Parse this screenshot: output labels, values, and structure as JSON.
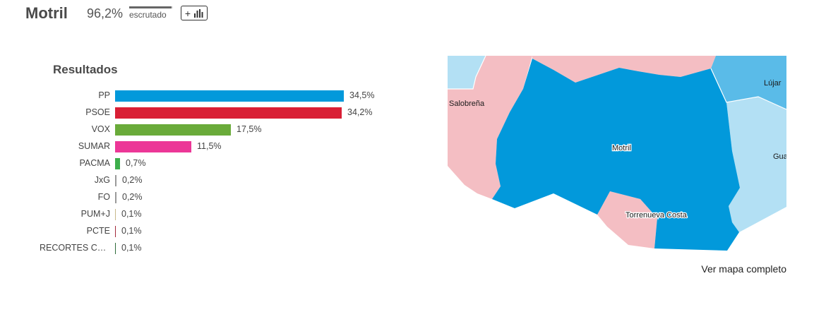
{
  "header": {
    "title": "Motril",
    "scrutiny_pct": "96,2%",
    "scrutiny_fraction": 0.962,
    "scrutiny_label": "escrutado",
    "plus_label": "+",
    "chart_icon": "bar-chart-icon"
  },
  "results": {
    "title": "Resultados",
    "rows": [
      {
        "label": "PP",
        "value": "34,5%",
        "pct": 34.5,
        "color": "#0299DB"
      },
      {
        "label": "PSOE",
        "value": "34,2%",
        "pct": 34.2,
        "color": "#D91F35"
      },
      {
        "label": "VOX",
        "value": "17,5%",
        "pct": 17.5,
        "color": "#6AAB3A"
      },
      {
        "label": "SUMAR",
        "value": "11,5%",
        "pct": 11.5,
        "color": "#EC3797"
      },
      {
        "label": "PACMA",
        "value": "0,7%",
        "pct": 0.7,
        "color": "#3DAE4B"
      },
      {
        "label": "JxG",
        "value": "0,2%",
        "pct": 0.2,
        "color": "#9A9A9A"
      },
      {
        "label": "FO",
        "value": "0,2%",
        "pct": 0.2,
        "color": "#9A9A9A"
      },
      {
        "label": "PUM+J",
        "value": "0,1%",
        "pct": 0.1,
        "color": "#C8B98A"
      },
      {
        "label": "PCTE",
        "value": "0,1%",
        "pct": 0.1,
        "color": "#A3293A"
      },
      {
        "label": "RECORTES CE...",
        "value": "0,1%",
        "pct": 0.1,
        "color": "#2E6B3A"
      }
    ]
  },
  "map": {
    "labels": {
      "salobrena": "Salobreña",
      "motril": "Motril",
      "lujar": "Lújar",
      "gualchos": "Gua",
      "torrenueva": "Torrenueva Costa"
    },
    "colors": {
      "pp": "#0299DB",
      "psoe": "#F4BEC3",
      "pp_light": "#B3E0F4",
      "pp_mid": "#5ABBE8"
    },
    "link_label": "Ver mapa completo"
  }
}
